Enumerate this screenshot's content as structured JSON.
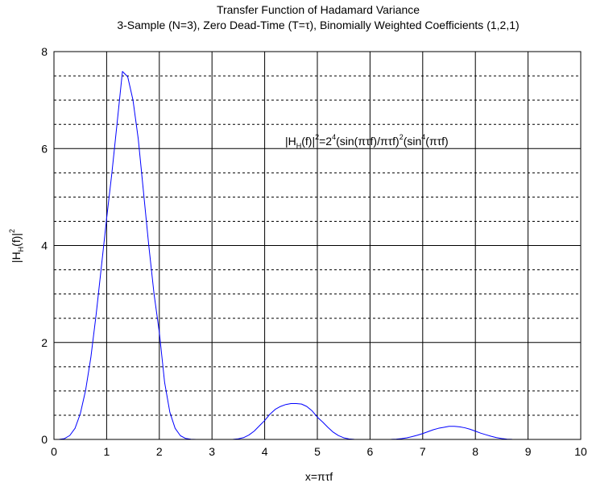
{
  "chart_data": {
    "type": "line",
    "title": "Transfer Function of Hadamard Variance",
    "subtitle": "3-Sample (N=3), Zero Dead-Time (T=τ), Binomially Weighted Coefficients (1,2,1)",
    "xlabel": "x=πτf",
    "ylabel": {
      "base": "|H",
      "sub": "H",
      "mid": "(f)|",
      "sup": "2"
    },
    "annotation": {
      "p1": "|H",
      "p1_sub": "H",
      "p2": "(f)|",
      "p2_sup": "2",
      "p3": "=2",
      "p3_sup": "4",
      "p4": "(sin(πτf)/πτf)",
      "p4_sup": "2",
      "p5": "(sin",
      "p5_sup": "4",
      "p6": "(πτf)"
    },
    "xlim": [
      0,
      10
    ],
    "ylim": [
      0,
      8
    ],
    "x_ticks": [
      0,
      1,
      2,
      3,
      4,
      5,
      6,
      7,
      8,
      9,
      10
    ],
    "y_ticks": [
      0,
      2,
      4,
      6,
      8
    ],
    "y_minor_grid": [
      0.5,
      1,
      1.5,
      2.5,
      3,
      3.5,
      4.5,
      5,
      5.5,
      6.5,
      7,
      7.5
    ],
    "grid": true,
    "line_color": "#0000ff",
    "series": [
      {
        "x": [
          0,
          0.1,
          0.2,
          0.3,
          0.4,
          0.5,
          0.6,
          0.7,
          0.8,
          0.9,
          1.0,
          1.1,
          1.2,
          1.3,
          1.4,
          1.5,
          1.6,
          1.7,
          1.8,
          1.9,
          2.0,
          2.1,
          2.2,
          2.3,
          2.4,
          2.5,
          2.6,
          2.7,
          2.8,
          2.9,
          3.0,
          3.1,
          3.2,
          3.3,
          3.4,
          3.5,
          3.6,
          3.7,
          3.8,
          3.9,
          4.0,
          4.1,
          4.2,
          4.3,
          4.4,
          4.5,
          4.6,
          4.7,
          4.8,
          4.9,
          5.0,
          5.1,
          5.2,
          5.3,
          5.4,
          5.5,
          5.6,
          5.7,
          5.8,
          5.9,
          6.0,
          6.1,
          6.2,
          6.3,
          6.4,
          6.5,
          6.6,
          6.7,
          6.8,
          6.9,
          7.0,
          7.1,
          7.2,
          7.3,
          7.4,
          7.5,
          7.6,
          7.7,
          7.8,
          7.9,
          8.0,
          8.1,
          8.2,
          8.3,
          8.4,
          8.5,
          8.6,
          8.7,
          8.8,
          8.9,
          9.0,
          9.1,
          9.2,
          9.3,
          9.4,
          9.5,
          9.6,
          9.7,
          9.8,
          9.9,
          10.0
        ],
        "values": [
          0,
          0.0011,
          0.017,
          0.081,
          0.23,
          0.53,
          1.01,
          1.69,
          2.57,
          3.56,
          4.56,
          5.5,
          6.54,
          7.59,
          7.48,
          7.0,
          6.2,
          5.1,
          4.0,
          3.0,
          2.21,
          1.18,
          0.56,
          0.23,
          0.077,
          0.02,
          0.0041,
          0.0006,
          4e-05,
          0,
          0,
          0,
          2e-05,
          0.0003,
          0.0027,
          0.012,
          0.037,
          0.09,
          0.17,
          0.28,
          0.39,
          0.52,
          0.62,
          0.68,
          0.72,
          0.74,
          0.74,
          0.73,
          0.68,
          0.59,
          0.46,
          0.36,
          0.25,
          0.15,
          0.08,
          0.034,
          0.01,
          0.0019,
          0.0002,
          0,
          0,
          0,
          3e-05,
          0.0004,
          0.0022,
          0.0071,
          0.017,
          0.034,
          0.058,
          0.087,
          0.12,
          0.16,
          0.2,
          0.23,
          0.25,
          0.27,
          0.27,
          0.26,
          0.24,
          0.21,
          0.17,
          0.13,
          0.097,
          0.064,
          0.037,
          0.018,
          0.007,
          0.002,
          0.0003,
          2e-05,
          0,
          0,
          0,
          0,
          0,
          0,
          0,
          0,
          0,
          0,
          0
        ]
      }
    ]
  }
}
